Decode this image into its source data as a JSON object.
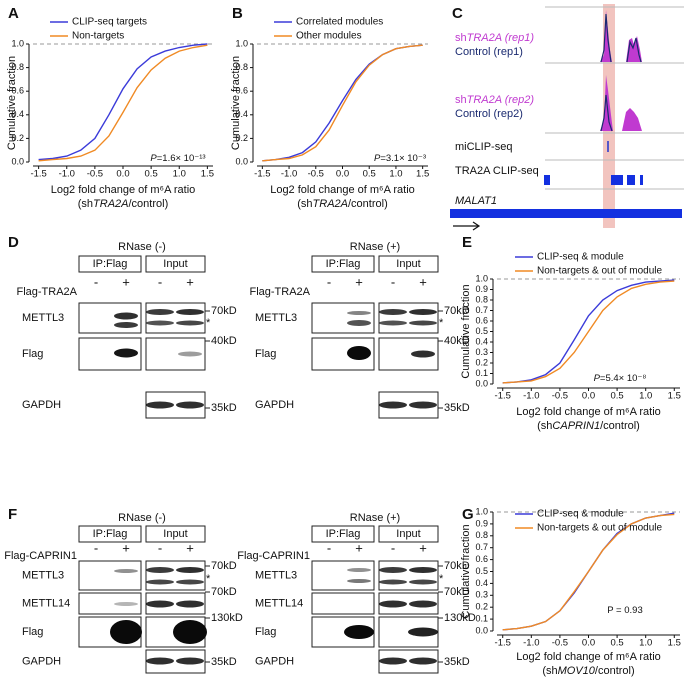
{
  "chart_data": [
    {
      "type": "line",
      "panel": "A",
      "ylabel": "Cumulative fraction",
      "xlabel": "Log2 fold change of m⁶A ratio",
      "xlabel2": [
        "(sh",
        "TRA2A",
        "/control)"
      ],
      "annotation": [
        "P",
        "=1.6× 10⁻¹³"
      ],
      "xlim": [
        -1.6,
        1.6
      ],
      "ylim": [
        0,
        1
      ],
      "hline": 1,
      "xticks": [
        -1.5,
        {
          "value": -1,
          "label": "-1.0"
        },
        -0.5,
        {
          "value": 0,
          "label": "0.0"
        },
        0.5,
        {
          "value": 1,
          "label": "1.0"
        },
        1.5
      ],
      "yticks": [
        {
          "value": 0,
          "label": "0.0"
        },
        0.2,
        0.4,
        0.6,
        0.8,
        {
          "value": 1,
          "label": "1.0"
        }
      ],
      "x": [
        -1.5,
        -1.25,
        -1,
        -0.75,
        -0.5,
        -0.25,
        0,
        0.25,
        0.5,
        0.75,
        1,
        1.25,
        1.5
      ],
      "series": [
        {
          "name": "CLIP-seq targets",
          "color": "#3b3bd9",
          "values": [
            0.02,
            0.03,
            0.05,
            0.1,
            0.2,
            0.4,
            0.62,
            0.79,
            0.89,
            0.94,
            0.97,
            0.99,
            1.0
          ]
        },
        {
          "name": "Non-targets",
          "color": "#f08a24",
          "values": [
            0.01,
            0.02,
            0.03,
            0.05,
            0.1,
            0.22,
            0.42,
            0.63,
            0.78,
            0.88,
            0.94,
            0.97,
            0.99
          ]
        }
      ]
    },
    {
      "type": "line",
      "panel": "B",
      "ylabel": "Cumulative fraction",
      "xlabel": "Log2 fold change of m⁶A ratio",
      "xlabel2": [
        "(sh",
        "TRA2A",
        "/control)"
      ],
      "annotation": [
        "P",
        "=3.1× 10⁻³"
      ],
      "xlim": [
        -1.6,
        1.6
      ],
      "ylim": [
        0,
        1
      ],
      "hline": 1,
      "xticks": [
        -1.5,
        {
          "value": -1,
          "label": "-1.0"
        },
        -0.5,
        {
          "value": 0,
          "label": "0.0"
        },
        0.5,
        {
          "value": 1,
          "label": "1.0"
        },
        1.5
      ],
      "yticks": [
        {
          "value": 0,
          "label": "0.0"
        },
        0.2,
        0.4,
        0.6,
        0.8,
        {
          "value": 1,
          "label": "1.0"
        }
      ],
      "x": [
        -1.5,
        -1.25,
        -1,
        -0.75,
        -0.5,
        -0.25,
        0,
        0.25,
        0.5,
        0.75,
        1,
        1.25,
        1.5
      ],
      "series": [
        {
          "name": "Correlated modules",
          "color": "#3b3bd9",
          "values": [
            0.01,
            0.02,
            0.04,
            0.08,
            0.17,
            0.33,
            0.52,
            0.7,
            0.83,
            0.91,
            0.96,
            0.98,
            0.99
          ]
        },
        {
          "name": "Other modules",
          "color": "#f08a24",
          "values": [
            0.01,
            0.02,
            0.03,
            0.06,
            0.13,
            0.27,
            0.48,
            0.68,
            0.82,
            0.91,
            0.96,
            0.98,
            0.99
          ]
        }
      ]
    },
    {
      "type": "line",
      "panel": "E",
      "ylabel": "Cumulative fraction",
      "xlabel": "Log2 fold change of m⁶A ratio",
      "xlabel2": [
        "(sh",
        "CAPRIN1",
        "/control)"
      ],
      "annotation": [
        "P",
        "=5.4× 10⁻⁸"
      ],
      "xlim": [
        -1.6,
        1.6
      ],
      "ylim": [
        0,
        1
      ],
      "hline": 1,
      "xticks": [
        -1.5,
        {
          "value": -1,
          "label": "-1.0"
        },
        -0.5,
        {
          "value": 0,
          "label": "0.0"
        },
        0.5,
        {
          "value": 1,
          "label": "1.0"
        },
        1.5
      ],
      "yticks": [
        {
          "value": 0,
          "label": "0.0"
        },
        0.1,
        0.2,
        0.3,
        0.4,
        0.5,
        0.6,
        0.7,
        0.8,
        0.9,
        {
          "value": 1,
          "label": "1.0"
        }
      ],
      "x": [
        -1.5,
        -1.25,
        -1,
        -0.75,
        -0.5,
        -0.25,
        0,
        0.25,
        0.5,
        0.75,
        1,
        1.25,
        1.5
      ],
      "series": [
        {
          "name": "CLIP-seq & module",
          "color": "#3b3bd9",
          "values": [
            0.01,
            0.02,
            0.04,
            0.09,
            0.2,
            0.42,
            0.65,
            0.8,
            0.89,
            0.94,
            0.97,
            0.98,
            0.99
          ]
        },
        {
          "name": "Non-targets & out of module",
          "color": "#f08a24",
          "values": [
            0.01,
            0.02,
            0.03,
            0.07,
            0.15,
            0.3,
            0.5,
            0.7,
            0.83,
            0.91,
            0.95,
            0.97,
            0.98
          ]
        }
      ]
    },
    {
      "type": "line",
      "panel": "G",
      "ylabel": "Cumulative fraction",
      "xlabel": "Log2 fold change of m⁶A ratio",
      "xlabel2": [
        "(sh",
        "MOV10",
        "/control)"
      ],
      "annotation": [
        "P = 0.93"
      ],
      "xlim": [
        -1.6,
        1.6
      ],
      "ylim": [
        0,
        1
      ],
      "hline": 1,
      "xticks": [
        -1.5,
        {
          "value": -1,
          "label": "-1.0"
        },
        -0.5,
        {
          "value": 0,
          "label": "0.0"
        },
        0.5,
        {
          "value": 1,
          "label": "1.0"
        },
        1.5
      ],
      "yticks": [
        {
          "value": 0,
          "label": "0.0"
        },
        0.1,
        0.2,
        0.3,
        0.4,
        0.5,
        0.6,
        0.7,
        0.8,
        0.9,
        {
          "value": 1,
          "label": "1.0"
        }
      ],
      "x": [
        -1.5,
        -1.25,
        -1,
        -0.75,
        -0.5,
        -0.25,
        0,
        0.25,
        0.5,
        0.75,
        1,
        1.25,
        1.5
      ],
      "series": [
        {
          "name": "CLIP-seq & module",
          "color": "#3b3bd9",
          "values": [
            0.01,
            0.02,
            0.04,
            0.08,
            0.17,
            0.32,
            0.5,
            0.68,
            0.82,
            0.9,
            0.95,
            0.97,
            0.99
          ]
        },
        {
          "name": "Non-targets & out of module",
          "color": "#f08a24",
          "values": [
            0.01,
            0.02,
            0.04,
            0.08,
            0.17,
            0.33,
            0.5,
            0.68,
            0.81,
            0.9,
            0.95,
            0.97,
            0.98
          ]
        }
      ]
    }
  ],
  "panel_C": {
    "letter": "C",
    "tracks": [
      {
        "sample": [
          "sh",
          "TRA2A (rep1)"
        ],
        "control": "Control (rep1)"
      },
      {
        "sample": [
          "sh",
          "TRA2A (rep2)"
        ],
        "control": "Control (rep2)"
      }
    ],
    "miclip": "miCLIP-seq",
    "clip": "TRA2A CLIP-seq",
    "gene": "MALAT1"
  },
  "panel_D": {
    "letter": "D",
    "subpanels": [
      {
        "condition": "RNase (-)",
        "groups": [
          "IP:Flag",
          "Input"
        ],
        "treatment": "Flag-TRA2A",
        "signs": [
          "-",
          "+",
          "-",
          "+"
        ],
        "rows": [
          "METTL3",
          "Flag",
          "GAPDH"
        ],
        "markers": [
          "70kD",
          "*",
          "40kD",
          "35kD"
        ]
      },
      {
        "condition": "RNase (+)",
        "groups": [
          "IP:Flag",
          "Input"
        ],
        "treatment": "Flag-TRA2A",
        "signs": [
          "-",
          "+",
          "-",
          "+"
        ],
        "rows": [
          "METTL3",
          "Flag",
          "GAPDH"
        ],
        "markers": [
          "70kD",
          "*",
          "40kD",
          "35kD"
        ]
      }
    ]
  },
  "panel_F": {
    "letter": "F",
    "subpanels": [
      {
        "condition": "RNase (-)",
        "groups": [
          "IP:Flag",
          "Input"
        ],
        "treatment": "Flag-CAPRIN1",
        "signs": [
          "-",
          "+",
          "-",
          "+"
        ],
        "rows": [
          "METTL3",
          "METTL14",
          "Flag",
          "GAPDH"
        ],
        "markers": [
          "70kD",
          "*",
          "70kD",
          "130kD",
          "35kD"
        ]
      },
      {
        "condition": "RNase (+)",
        "groups": [
          "IP:Flag",
          "Input"
        ],
        "treatment": "Flag-CAPRIN1",
        "signs": [
          "-",
          "+",
          "-",
          "+"
        ],
        "rows": [
          "METTL3",
          "METTL14",
          "Flag",
          "GAPDH"
        ],
        "markers": [
          "70kD",
          "*",
          "70kD",
          "130kD",
          "35kD"
        ]
      }
    ]
  }
}
